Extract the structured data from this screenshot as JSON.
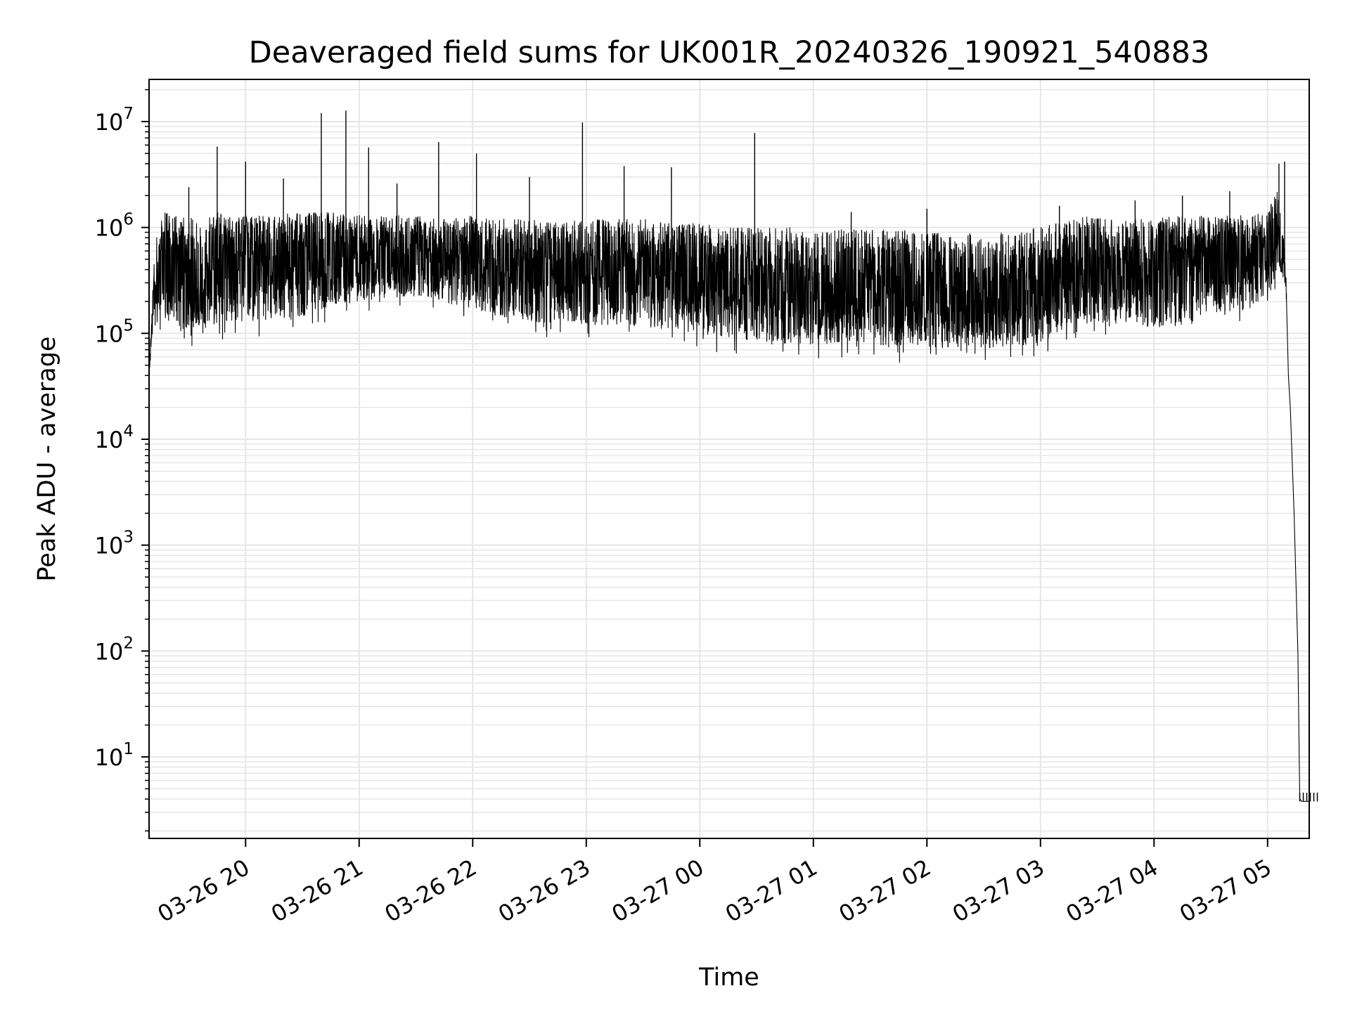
{
  "chart_data": {
    "type": "line",
    "title": "Deaveraged field sums for UK001R_20240326_190921_540883",
    "xlabel": "Time",
    "ylabel": "Peak ADU - average",
    "yscale": "log",
    "ylim": [
      1.7,
      25000000
    ],
    "xlim": [
      "03-26 19:09",
      "03-27 05:22"
    ],
    "grid": true,
    "line_color": "#000000",
    "grid_color": "#e6e6e6",
    "x_ticks": [
      "03-26 20",
      "03-26 21",
      "03-26 22",
      "03-26 23",
      "03-27 00",
      "03-27 01",
      "03-27 02",
      "03-27 03",
      "03-27 04",
      "03-27 05"
    ],
    "y_ticks": [
      {
        "base": "10",
        "exp": "1",
        "value": 10
      },
      {
        "base": "10",
        "exp": "2",
        "value": 100
      },
      {
        "base": "10",
        "exp": "3",
        "value": 1000
      },
      {
        "base": "10",
        "exp": "4",
        "value": 10000
      },
      {
        "base": "10",
        "exp": "5",
        "value": 100000
      },
      {
        "base": "10",
        "exp": "6",
        "value": 1000000
      },
      {
        "base": "10",
        "exp": "7",
        "value": 10000000
      }
    ],
    "series": [
      {
        "x": [
          "03-26 19:09",
          "03-26 19:12",
          "03-26 19:18",
          "03-26 19:25",
          "03-26 19:35",
          "03-26 19:45",
          "03-26 20:00",
          "03-26 20:15",
          "03-26 20:30",
          "03-26 20:45",
          "03-26 21:00",
          "03-26 21:15",
          "03-26 21:30",
          "03-26 21:45",
          "03-26 22:00",
          "03-26 22:15",
          "03-26 22:30",
          "03-26 22:45",
          "03-26 23:00",
          "03-26 23:15",
          "03-26 23:30",
          "03-26 23:45",
          "03-27 00:00",
          "03-27 00:15",
          "03-27 00:30",
          "03-27 00:45",
          "03-27 01:00",
          "03-27 01:15",
          "03-27 01:30",
          "03-27 01:45",
          "03-27 02:00",
          "03-27 02:15",
          "03-27 02:30",
          "03-27 02:45",
          "03-27 03:00",
          "03-27 03:15",
          "03-27 03:30",
          "03-27 03:45",
          "03-27 04:00",
          "03-27 04:15",
          "03-27 04:30",
          "03-27 04:45",
          "03-27 05:00",
          "03-27 05:05",
          "03-27 05:08",
          "03-27 05:10",
          "03-27 05:11",
          "03-27 05:12",
          "03-27 05:14",
          "03-27 05:16",
          "03-27 05:17",
          "03-27 05:18",
          "03-27 05:22"
        ],
        "values": [
          40000,
          400000,
          700000,
          500000,
          200000,
          600000,
          550000,
          500000,
          550000,
          600000,
          500000,
          480000,
          470000,
          460000,
          480000,
          420000,
          400000,
          450000,
          460000,
          430000,
          420000,
          400000,
          380000,
          320000,
          300000,
          260000,
          250000,
          240000,
          230000,
          240000,
          230000,
          220000,
          230000,
          250000,
          280000,
          420000,
          450000,
          430000,
          420000,
          450000,
          500000,
          520000,
          560000,
          900000,
          600000,
          200000,
          40000,
          20000,
          2000,
          100,
          4,
          3.8,
          3.8
        ],
        "envelope_lower": [
          40000,
          150000,
          120000,
          100000,
          110000,
          120000,
          130000,
          130000,
          150000,
          180000,
          200000,
          220000,
          220000,
          200000,
          160000,
          140000,
          130000,
          120000,
          120000,
          120000,
          110000,
          110000,
          100000,
          90000,
          85000,
          80000,
          80000,
          75000,
          75000,
          75000,
          72000,
          70000,
          72000,
          75000,
          80000,
          120000,
          130000,
          120000,
          110000,
          110000,
          140000,
          160000,
          200000,
          400000,
          350000,
          150000,
          40000,
          20000,
          2000,
          100,
          4,
          3.8,
          3.8
        ],
        "envelope_upper": [
          40000,
          800000,
          1500000,
          1300000,
          1200000,
          1400000,
          1300000,
          1300000,
          1400000,
          1400000,
          1300000,
          1300000,
          1300000,
          1200000,
          1300000,
          1200000,
          1200000,
          1100000,
          1200000,
          1200000,
          1200000,
          1100000,
          1100000,
          1000000,
          1000000,
          1000000,
          1000000,
          950000,
          950000,
          950000,
          900000,
          900000,
          900000,
          950000,
          1000000,
          1200000,
          1300000,
          1200000,
          1200000,
          1300000,
          1300000,
          1300000,
          1400000,
          2500000,
          1000000,
          300000,
          40000,
          20000,
          2000,
          100,
          4,
          3.8,
          3.8
        ]
      }
    ],
    "spikes": [
      {
        "x": "03-26 19:30",
        "value": 2400000
      },
      {
        "x": "03-26 19:45",
        "value": 5800000
      },
      {
        "x": "03-26 20:00",
        "value": 4200000
      },
      {
        "x": "03-26 20:20",
        "value": 2900000
      },
      {
        "x": "03-26 20:40",
        "value": 12000000
      },
      {
        "x": "03-26 20:53",
        "value": 12700000
      },
      {
        "x": "03-26 21:05",
        "value": 5700000
      },
      {
        "x": "03-26 21:20",
        "value": 2600000
      },
      {
        "x": "03-26 21:42",
        "value": 6400000
      },
      {
        "x": "03-26 22:02",
        "value": 5000000
      },
      {
        "x": "03-26 22:30",
        "value": 3000000
      },
      {
        "x": "03-26 22:58",
        "value": 9800000
      },
      {
        "x": "03-26 23:20",
        "value": 3800000
      },
      {
        "x": "03-26 23:45",
        "value": 3700000
      },
      {
        "x": "03-27 00:29",
        "value": 7800000
      },
      {
        "x": "03-27 01:20",
        "value": 1400000
      },
      {
        "x": "03-27 02:00",
        "value": 1500000
      },
      {
        "x": "03-27 03:10",
        "value": 1600000
      },
      {
        "x": "03-27 03:50",
        "value": 1800000
      },
      {
        "x": "03-27 04:15",
        "value": 2000000
      },
      {
        "x": "03-27 04:40",
        "value": 2200000
      },
      {
        "x": "03-27 05:06",
        "value": 4000000
      },
      {
        "x": "03-27 05:09",
        "value": 4200000
      }
    ]
  }
}
